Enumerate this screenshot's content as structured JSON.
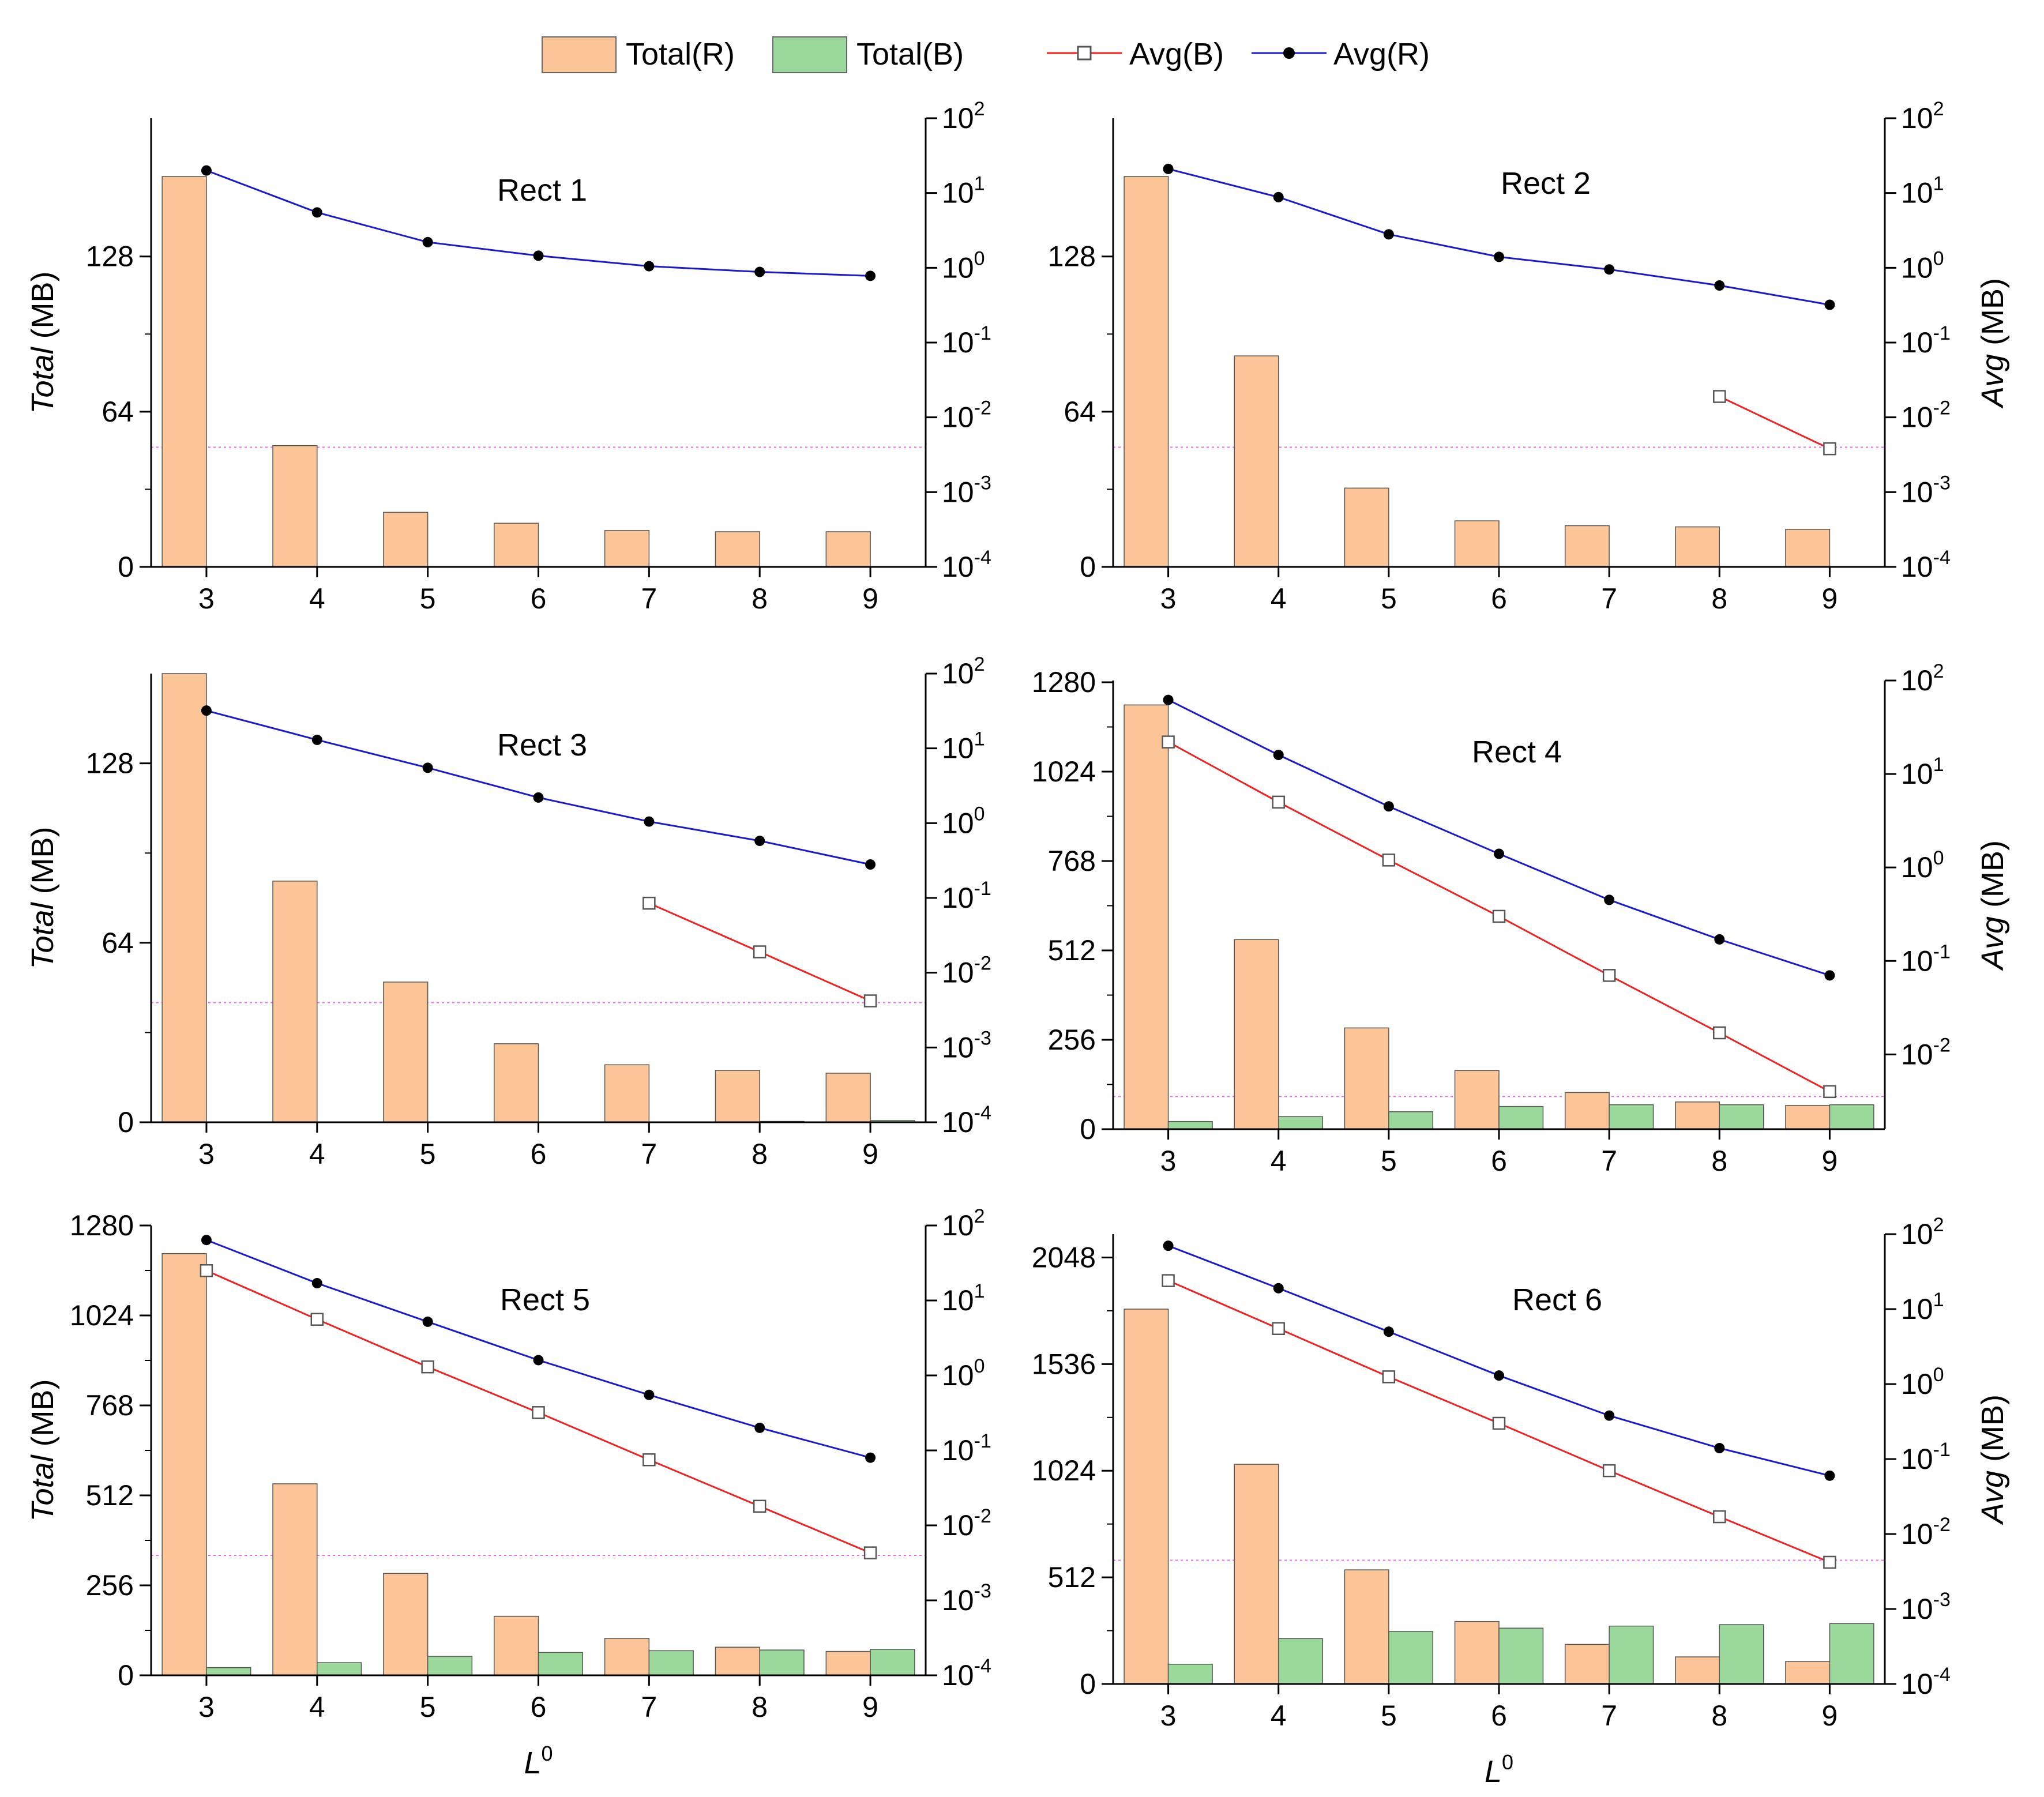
{
  "legend": {
    "total_r": "Total(R)",
    "total_b": "Total(B)",
    "avg_b": "Avg(B)",
    "avg_r": "Avg(R)"
  },
  "colors": {
    "total_r": "#fcc598",
    "total_b": "#9bd89b",
    "avg_b": "#ee2222",
    "avg_r": "#1a1acc",
    "threshold": "#ee66ee"
  },
  "axes": {
    "x_label_main": "L",
    "x_label_sup": "0",
    "y_left_italic": "Total",
    "y_left_unit": " (MB)",
    "y_right_italic": "Avg",
    "y_right_unit": " (MB)",
    "log_base": "10",
    "log_exponents": [
      "2",
      "1",
      "0",
      "-1",
      "-2",
      "-3",
      "-4"
    ]
  },
  "chart_data": [
    {
      "type": "bar",
      "title": "Rect 1",
      "categories": [
        "3",
        "4",
        "5",
        "6",
        "7",
        "8",
        "9"
      ],
      "left_ticks": [
        "0",
        "64",
        "128"
      ],
      "ylim": [
        0,
        185
      ],
      "ylim_right_log10": [
        -4,
        2
      ],
      "series": [
        {
          "name": "Total(R)",
          "values": [
            161,
            50,
            22.5,
            18,
            15,
            14.5,
            14.5
          ]
        },
        {
          "name": "Total(B)",
          "values": [
            0,
            0,
            0,
            0,
            0,
            0,
            0
          ]
        },
        {
          "name": "Avg(R)",
          "values": [
            20,
            5.5,
            2.2,
            1.45,
            1.05,
            0.88,
            0.78
          ]
        },
        {
          "name": "Avg(B)",
          "values": [
            null,
            null,
            null,
            null,
            null,
            null,
            null
          ]
        }
      ],
      "threshold_log10": -2.4
    },
    {
      "type": "bar",
      "title": "Rect 2",
      "categories": [
        "3",
        "4",
        "5",
        "6",
        "7",
        "8",
        "9"
      ],
      "left_ticks": [
        "0",
        "64",
        "128"
      ],
      "ylim": [
        0,
        185
      ],
      "ylim_right_log10": [
        -4,
        2
      ],
      "series": [
        {
          "name": "Total(R)",
          "values": [
            161,
            87,
            32.5,
            19,
            17,
            16.5,
            15.5
          ]
        },
        {
          "name": "Total(B)",
          "values": [
            0,
            0,
            0,
            0,
            0,
            0,
            0
          ]
        },
        {
          "name": "Avg(R)",
          "values": [
            21,
            8.8,
            2.8,
            1.4,
            0.95,
            0.58,
            0.32
          ]
        },
        {
          "name": "Avg(B)",
          "values": [
            null,
            null,
            null,
            null,
            null,
            0.019,
            0.0038
          ]
        }
      ],
      "threshold_log10": -2.4
    },
    {
      "type": "bar",
      "title": "Rect 3",
      "categories": [
        "3",
        "4",
        "5",
        "6",
        "7",
        "8",
        "9"
      ],
      "left_ticks": [
        "0",
        "64",
        "128"
      ],
      "ylim": [
        0,
        160
      ],
      "ylim_right_log10": [
        -4,
        2
      ],
      "series": [
        {
          "name": "Total(R)",
          "values": [
            160,
            86,
            50,
            28,
            20.5,
            18.5,
            17.5
          ]
        },
        {
          "name": "Total(B)",
          "values": [
            0,
            0,
            0,
            0,
            0,
            0.3,
            0.6
          ]
        },
        {
          "name": "Avg(R)",
          "values": [
            32,
            13,
            5.5,
            2.2,
            1.05,
            0.58,
            0.28
          ]
        },
        {
          "name": "Avg(B)",
          "values": [
            null,
            null,
            null,
            null,
            0.085,
            0.019,
            0.0042
          ]
        }
      ],
      "threshold_log10": -2.4
    },
    {
      "type": "bar",
      "title": "Rect 4",
      "categories": [
        "3",
        "4",
        "5",
        "6",
        "7",
        "8",
        "9"
      ],
      "left_ticks": [
        "0",
        "256",
        "512",
        "768",
        "1024",
        "1280"
      ],
      "ylim": [
        0,
        1285
      ],
      "ylim_right_log10": [
        -2.8,
        2
      ],
      "series": [
        {
          "name": "Total(R)",
          "values": [
            1215,
            543,
            290,
            168,
            105,
            78,
            68
          ]
        },
        {
          "name": "Total(B)",
          "values": [
            22,
            36,
            50,
            65,
            70,
            70,
            70
          ]
        },
        {
          "name": "Avg(R)",
          "values": [
            62,
            16,
            4.5,
            1.4,
            0.45,
            0.17,
            0.07
          ]
        },
        {
          "name": "Avg(B)",
          "values": [
            22,
            5,
            1.2,
            0.3,
            0.07,
            0.017,
            0.004
          ]
        }
      ],
      "threshold_log10": -2.45
    },
    {
      "type": "bar",
      "title": "Rect 5",
      "categories": [
        "3",
        "4",
        "5",
        "6",
        "7",
        "8",
        "9"
      ],
      "left_ticks": [
        "0",
        "256",
        "512",
        "768",
        "1024",
        "1280"
      ],
      "ylim": [
        0,
        1280
      ],
      "ylim_right_log10": [
        -4,
        2
      ],
      "series": [
        {
          "name": "Total(R)",
          "values": [
            1200,
            545,
            290,
            168,
            105,
            80,
            68
          ]
        },
        {
          "name": "Total(B)",
          "values": [
            22,
            36,
            54,
            65,
            70,
            72,
            74
          ]
        },
        {
          "name": "Avg(R)",
          "values": [
            64,
            17,
            5.2,
            1.6,
            0.55,
            0.2,
            0.08
          ]
        },
        {
          "name": "Avg(B)",
          "values": [
            25,
            5.6,
            1.3,
            0.32,
            0.075,
            0.018,
            0.0043
          ]
        }
      ],
      "threshold_log10": -2.4
    },
    {
      "type": "bar",
      "title": "Rect 6",
      "categories": [
        "3",
        "4",
        "5",
        "6",
        "7",
        "8",
        "9"
      ],
      "left_ticks": [
        "0",
        "512",
        "1024",
        "1536",
        "2048"
      ],
      "ylim": [
        0,
        2160
      ],
      "ylim_right_log10": [
        -4,
        2
      ],
      "series": [
        {
          "name": "Total(R)",
          "values": [
            1800,
            1055,
            548,
            300,
            190,
            130,
            108
          ]
        },
        {
          "name": "Total(B)",
          "values": [
            95,
            218,
            252,
            268,
            278,
            285,
            290
          ]
        },
        {
          "name": "Avg(R)",
          "values": [
            70,
            19,
            5,
            1.3,
            0.38,
            0.14,
            0.06
          ]
        },
        {
          "name": "Avg(B)",
          "values": [
            24,
            5.5,
            1.25,
            0.3,
            0.07,
            0.017,
            0.0042
          ]
        }
      ],
      "threshold_log10": -2.35
    }
  ]
}
